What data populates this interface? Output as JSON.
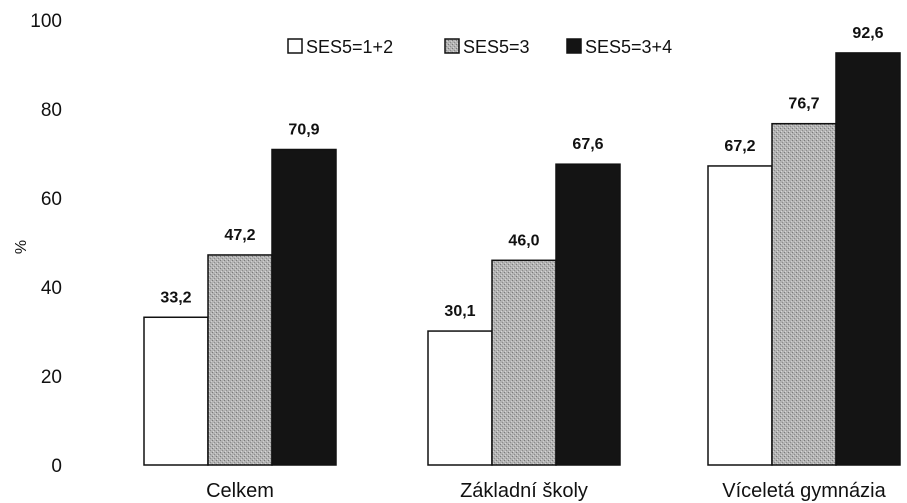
{
  "chart_data": {
    "type": "bar",
    "title": "",
    "xlabel": "",
    "ylabel": "%",
    "ylim": [
      0,
      100
    ],
    "yticks": [
      0,
      20,
      40,
      60,
      80,
      100
    ],
    "grid": false,
    "legend_position": "top",
    "categories": [
      "Celkem",
      "Základní školy",
      "Víceletá gymnázia"
    ],
    "series": [
      {
        "name": "SES5=1+2",
        "values": [
          33.2,
          30.1,
          67.2
        ],
        "value_labels": [
          "33,2",
          "30,1",
          "67,2"
        ],
        "color": "#ffffff"
      },
      {
        "name": "SES5=3",
        "values": [
          47.2,
          46.0,
          76.7
        ],
        "value_labels": [
          "47,2",
          "46,0",
          "76,7"
        ],
        "color": "#a9a9a9"
      },
      {
        "name": "SES5=3+4",
        "values": [
          70.9,
          67.6,
          92.6
        ],
        "value_labels": [
          "70,9",
          "67,6",
          "92,6"
        ],
        "color": "#141414"
      }
    ]
  }
}
